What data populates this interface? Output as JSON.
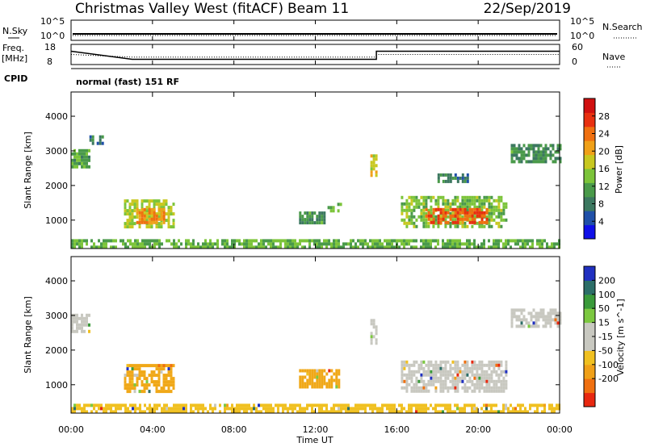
{
  "header": {
    "station": "Christmas Valley West (fitACF)",
    "beam": "Beam 11",
    "date": "22/Sep/2019"
  },
  "strip_labels": {
    "nsky": "N.Sky",
    "nsky_tick_hi": "10^5",
    "nsky_tick_lo": "10^0",
    "nsearch": "N.Search",
    "nsearch_tick_hi": "10^5",
    "nsearch_tick_lo": "10^0",
    "freq": "Freq.",
    "freq_unit": "[MHz]",
    "freq_tick_hi": "18",
    "freq_tick_lo": "8",
    "nave": "Nave",
    "nave_tick_hi": "60",
    "nave_tick_lo": "0",
    "cpid": "CPID",
    "mode": "normal (fast) 151 RF"
  },
  "chart_data": [
    {
      "type": "line",
      "panel": "noise",
      "x_range_hours": [
        0,
        24
      ],
      "series": [
        {
          "name": "N.Sky",
          "level": 0.55,
          "style": "solid"
        },
        {
          "name": "N.Search",
          "level": 0.5,
          "style": "dotted"
        }
      ]
    },
    {
      "type": "line",
      "panel": "frequency",
      "x_range_hours": [
        0,
        24
      ],
      "series": [
        {
          "name": "Freq.",
          "units": "MHz",
          "y_range": [
            8,
            18
          ],
          "steps": [
            [
              0,
              14.6
            ],
            [
              3.0,
              10.6
            ],
            [
              15.0,
              10.6
            ],
            [
              15.0,
              14.6
            ],
            [
              24,
              14.6
            ]
          ]
        },
        {
          "name": "Nave",
          "y_range": [
            0,
            60
          ],
          "steps": [
            [
              0,
              30
            ],
            [
              3.0,
              22
            ],
            [
              15.0,
              22
            ],
            [
              15.0,
              30
            ],
            [
              24,
              30
            ]
          ]
        }
      ]
    },
    {
      "type": "heatmap",
      "panel": "power",
      "x_ticks": [
        "00:00",
        "04:00",
        "08:00",
        "12:00",
        "16:00",
        "20:00",
        "00:00"
      ],
      "x_range_hours": [
        0,
        24
      ],
      "ylabel": "Slant Range [km]",
      "y_ticks": [
        "1000",
        "2000",
        "3000",
        "4000"
      ],
      "y_range_km": [
        180,
        4700
      ],
      "colorbar_label": "Power [dB]",
      "colorbar_ticks": [
        "4",
        "8",
        "12",
        "16",
        "20",
        "24",
        "28"
      ],
      "colorbar_range": [
        0,
        32
      ],
      "colorbar_colors": [
        "#1010e8",
        "#2050a8",
        "#3c7860",
        "#4a9a4a",
        "#7cc43a",
        "#c8c820",
        "#f0a018",
        "#f07010",
        "#e83010",
        "#d01010"
      ],
      "regions": [
        {
          "t0": 0.0,
          "t1": 0.9,
          "r0": 2550,
          "r1": 3050,
          "level": 12
        },
        {
          "t0": 0.9,
          "t1": 1.6,
          "r0": 3250,
          "r1": 3450,
          "level": 8
        },
        {
          "t0": 2.6,
          "t1": 5.0,
          "r0": 850,
          "r1": 1600,
          "level": 16
        },
        {
          "t0": 3.2,
          "t1": 4.6,
          "r0": 950,
          "r1": 1350,
          "level": 22
        },
        {
          "t0": 11.2,
          "t1": 12.4,
          "r0": 950,
          "r1": 1250,
          "level": 10
        },
        {
          "t0": 12.6,
          "t1": 13.2,
          "r0": 1250,
          "r1": 1500,
          "level": 12
        },
        {
          "t0": 14.7,
          "t1": 15.0,
          "r0": 2200,
          "r1": 2900,
          "level": 18
        },
        {
          "t0": 16.2,
          "t1": 21.4,
          "r0": 850,
          "r1": 1700,
          "level": 14
        },
        {
          "t0": 17.4,
          "t1": 20.4,
          "r0": 900,
          "r1": 1350,
          "level": 25
        },
        {
          "t0": 18.0,
          "t1": 19.5,
          "r0": 2150,
          "r1": 2350,
          "level": 8
        },
        {
          "t0": 21.6,
          "t1": 24.0,
          "r0": 2700,
          "r1": 3200,
          "level": 10
        },
        {
          "t0": 0.0,
          "t1": 24.0,
          "r0": 180,
          "r1": 450,
          "level": 13
        }
      ]
    },
    {
      "type": "heatmap",
      "panel": "velocity",
      "x_ticks": [
        "00:00",
        "04:00",
        "08:00",
        "12:00",
        "16:00",
        "20:00",
        "00:00"
      ],
      "x_range_hours": [
        0,
        24
      ],
      "xlabel": "Time UT",
      "ylabel": "Slant Range [km]",
      "y_ticks": [
        "1000",
        "2000",
        "3000",
        "4000"
      ],
      "y_range_km": [
        180,
        4700
      ],
      "colorbar_label": "Velocity [m s^-1]",
      "colorbar_ticks": [
        "200",
        "100",
        "50",
        "15",
        "-15",
        "-50",
        "-100",
        "-200"
      ],
      "colorbar_colors": [
        "#2030c0",
        "#2c6e68",
        "#3a9a3a",
        "#7cc840",
        "#c8c8c0",
        "#c8c8c0",
        "#f0c020",
        "#f0a018",
        "#f07010",
        "#e82810"
      ],
      "regions": [
        {
          "t0": 0.0,
          "t1": 0.9,
          "r0": 2550,
          "r1": 3050,
          "color": "#c8c8c0"
        },
        {
          "t0": 2.6,
          "t1": 5.0,
          "r0": 850,
          "r1": 1600,
          "color": "#f0a818"
        },
        {
          "t0": 11.2,
          "t1": 13.2,
          "r0": 950,
          "r1": 1450,
          "color": "#f0a818"
        },
        {
          "t0": 14.7,
          "t1": 15.0,
          "r0": 2200,
          "r1": 2900,
          "color": "#c8c8c0"
        },
        {
          "t0": 16.2,
          "t1": 21.4,
          "r0": 850,
          "r1": 1700,
          "color": "#c8c8c0"
        },
        {
          "t0": 21.6,
          "t1": 24.0,
          "r0": 2700,
          "r1": 3200,
          "color": "#c8c8c0"
        },
        {
          "t0": 0.0,
          "t1": 24.0,
          "r0": 180,
          "r1": 450,
          "color": "#f0c020"
        }
      ]
    }
  ]
}
